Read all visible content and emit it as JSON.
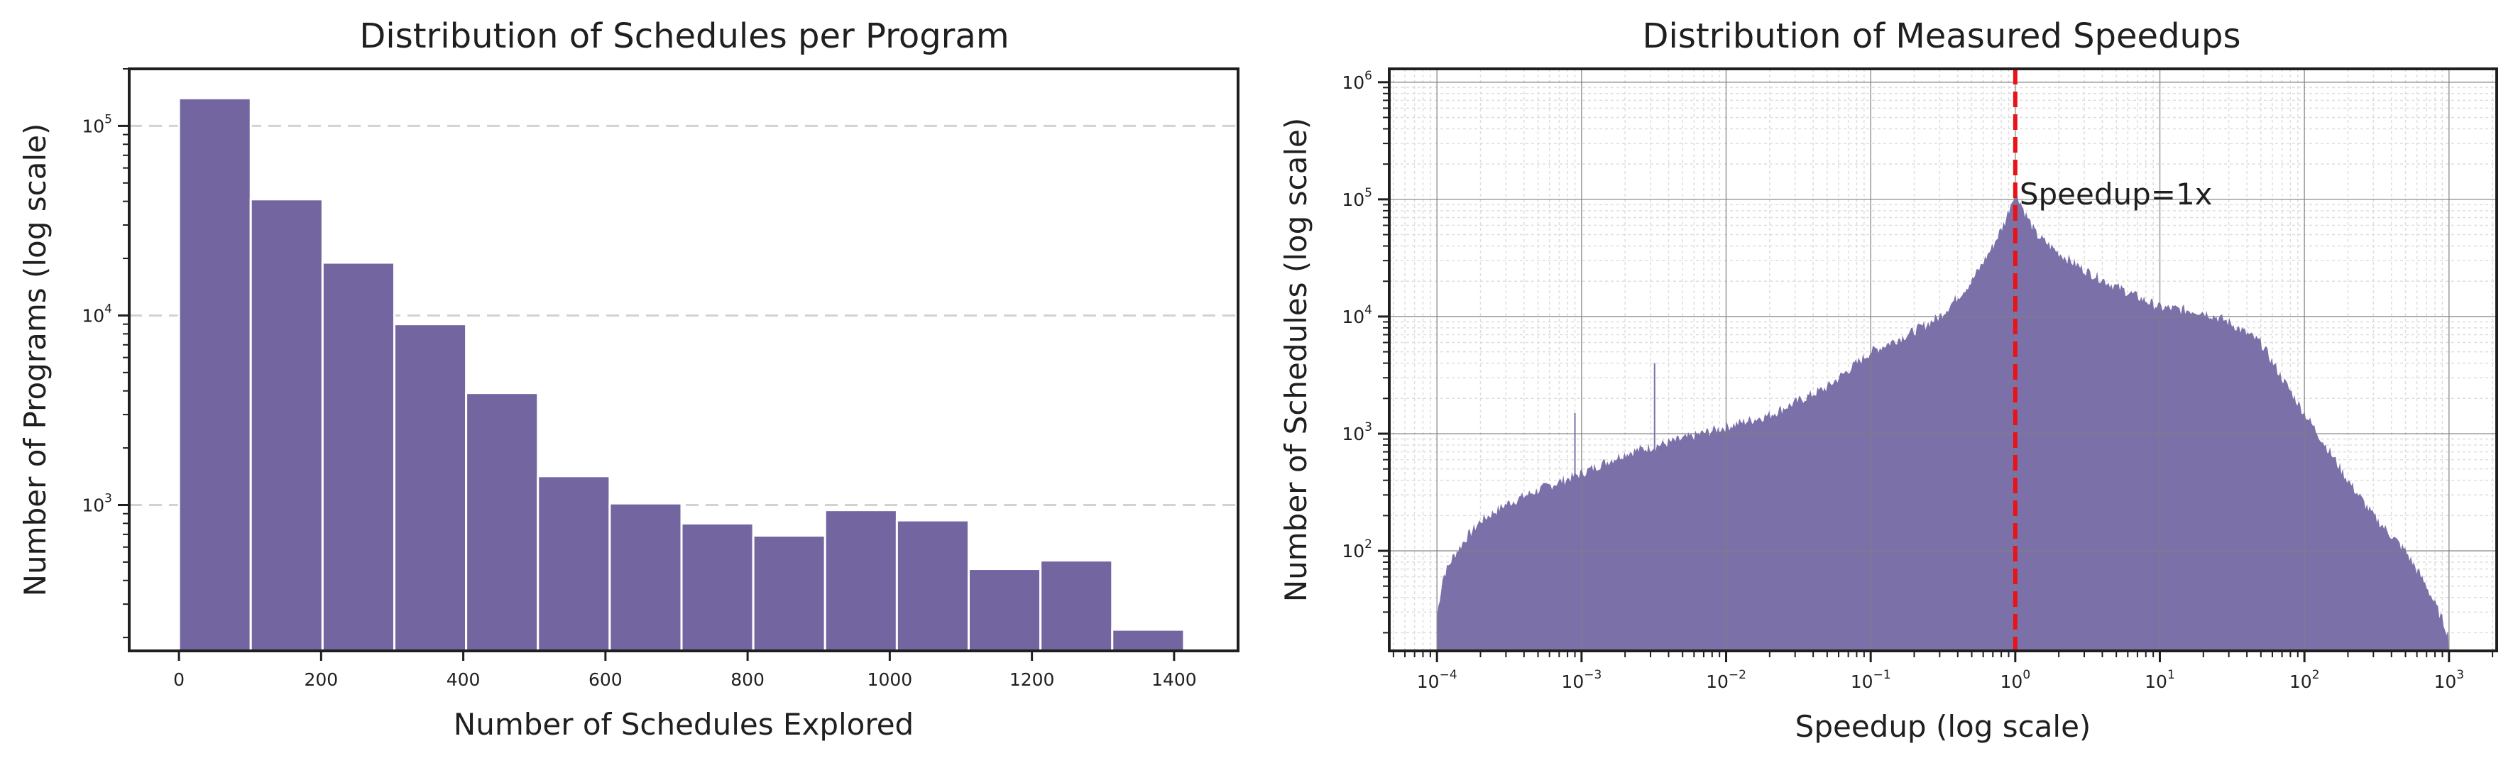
{
  "colors": {
    "bar": "#73659f",
    "area": "#7c70a9",
    "marker": "#e8141a",
    "frame": "#1f1f1f"
  },
  "chart_data": [
    {
      "type": "bar",
      "title": "Distribution of Schedules per Program",
      "xlabel": "Number of Schedules Explored",
      "ylabel": "Number of Programs (log scale)",
      "yscale": "log",
      "xlim": [
        -70,
        1490
      ],
      "ylim": [
        170,
        200000
      ],
      "xticks": [
        0,
        200,
        400,
        600,
        800,
        1000,
        1200,
        1400
      ],
      "xtick_labels": [
        "0",
        "200",
        "400",
        "600",
        "800",
        "1000",
        "1200",
        "1400"
      ],
      "yticks": [
        {
          "mant": "10",
          "exp": "3",
          "value": 1000
        },
        {
          "mant": "10",
          "exp": "4",
          "value": 10000
        },
        {
          "mant": "10",
          "exp": "5",
          "value": 100000
        }
      ],
      "grid": "horizontal dashed",
      "bin_edges": [
        0,
        101,
        202,
        303,
        404,
        505,
        606,
        707,
        808,
        909,
        1010,
        1111,
        1212,
        1313,
        1414
      ],
      "values": [
        140000,
        41000,
        19000,
        9000,
        3900,
        1420,
        1020,
        800,
        690,
        940,
        830,
        460,
        510,
        220
      ]
    },
    {
      "type": "area",
      "title": "Distribution of Measured Speedups",
      "xlabel": "Speedup (log scale)",
      "ylabel": "Number of Schedules (log scale)",
      "xscale": "log",
      "yscale": "log",
      "xlim_exp": [
        -4.33,
        3.33
      ],
      "ylim": [
        14,
        1300000
      ],
      "xticks": [
        {
          "mant": "10",
          "exp": "−4",
          "value": 0.0001
        },
        {
          "mant": "10",
          "exp": "−3",
          "value": 0.001
        },
        {
          "mant": "10",
          "exp": "−2",
          "value": 0.01
        },
        {
          "mant": "10",
          "exp": "−1",
          "value": 0.1
        },
        {
          "mant": "10",
          "exp": "0",
          "value": 1
        },
        {
          "mant": "10",
          "exp": "1",
          "value": 10
        },
        {
          "mant": "10",
          "exp": "2",
          "value": 100
        },
        {
          "mant": "10",
          "exp": "3",
          "value": 1000
        }
      ],
      "yticks": [
        {
          "mant": "10",
          "exp": "2",
          "value": 100
        },
        {
          "mant": "10",
          "exp": "3",
          "value": 1000
        },
        {
          "mant": "10",
          "exp": "4",
          "value": 10000
        },
        {
          "mant": "10",
          "exp": "5",
          "value": 100000
        },
        {
          "mant": "10",
          "exp": "6",
          "value": 1000000
        }
      ],
      "grid": "major and minor",
      "x": [
        0.0001,
        0.00011,
        0.00013,
        0.00016,
        0.0002,
        0.0003,
        0.0005,
        0.001,
        0.002,
        0.005,
        0.01,
        0.02,
        0.05,
        0.1,
        0.2,
        0.3,
        0.5,
        0.7,
        0.85,
        1.0,
        1.15,
        1.4,
        2,
        3,
        5,
        10,
        20,
        30,
        50,
        70,
        100,
        150,
        200,
        300,
        500,
        700,
        850,
        950,
        1000
      ],
      "y": [
        28,
        60,
        90,
        130,
        180,
        250,
        330,
        460,
        680,
        900,
        1150,
        1450,
        2500,
        5000,
        7500,
        10000,
        20000,
        40000,
        65000,
        120000,
        80000,
        50000,
        35000,
        25000,
        18000,
        12000,
        11000,
        9000,
        6000,
        3000,
        1500,
        700,
        400,
        200,
        100,
        50,
        30,
        22,
        18
      ],
      "spikes": [
        {
          "x": 0.0032,
          "y": 4000
        },
        {
          "x": 0.0009,
          "y": 1500
        }
      ],
      "reference_line": {
        "x": 1,
        "label": "Speedup=1x",
        "label_y": 110000
      }
    }
  ]
}
